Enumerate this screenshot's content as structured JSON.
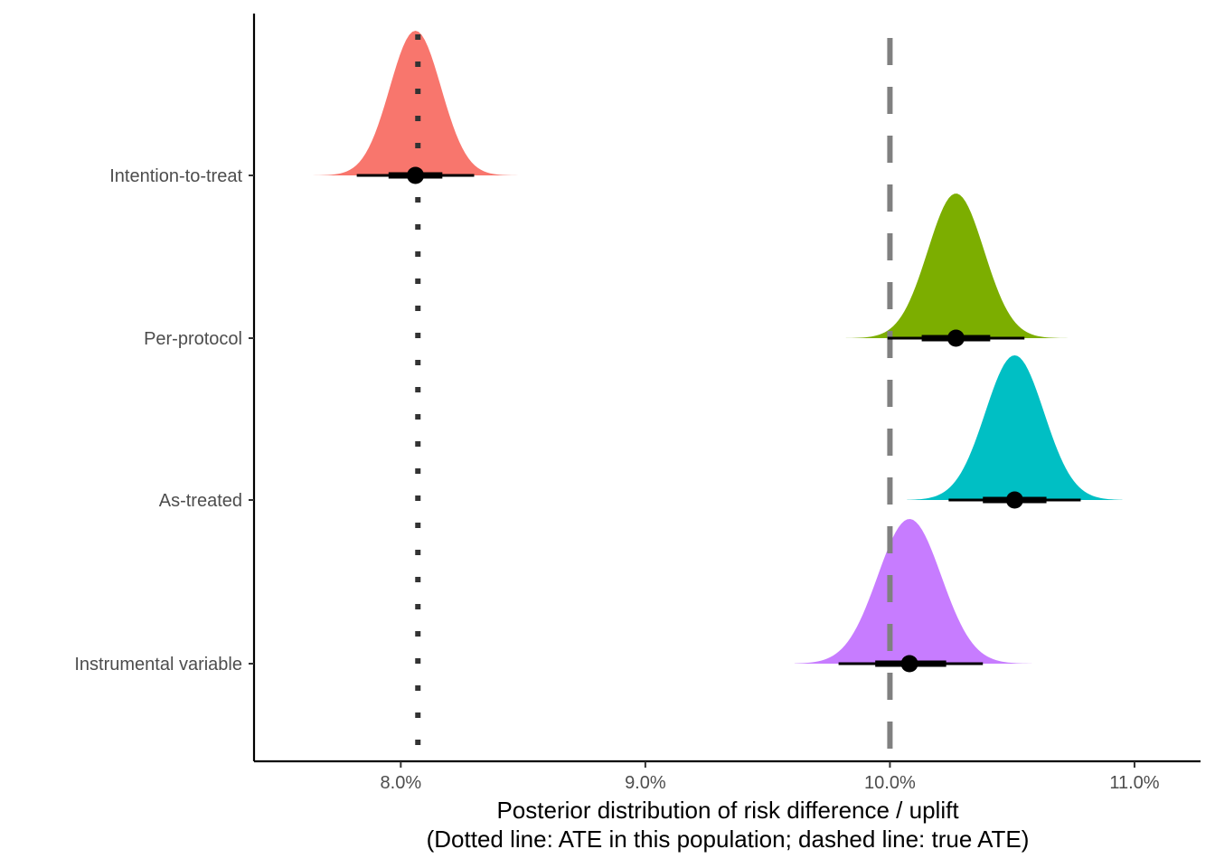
{
  "chart_data": {
    "type": "halfeye",
    "categories": [
      "Intention-to-treat",
      "Per-protocol",
      "As-treated",
      "Instrumental variable"
    ],
    "series": [
      {
        "name": "Intention-to-treat",
        "color": "#F8766D",
        "median": 8.06,
        "sd": 0.105,
        "interval_66": [
          7.95,
          8.17
        ],
        "interval_95": [
          7.82,
          8.3
        ],
        "range": [
          7.55,
          8.57
        ]
      },
      {
        "name": "Per-protocol",
        "color": "#7CAE00",
        "median": 10.27,
        "sd": 0.115,
        "interval_66": [
          10.13,
          10.41
        ],
        "interval_95": [
          9.99,
          10.55
        ],
        "range": [
          9.82,
          10.73
        ]
      },
      {
        "name": "As-treated",
        "color": "#00BFC4",
        "median": 10.51,
        "sd": 0.12,
        "interval_66": [
          10.38,
          10.64
        ],
        "interval_95": [
          10.24,
          10.78
        ],
        "range": [
          10.07,
          10.95
        ]
      },
      {
        "name": "Instrumental variable",
        "color": "#C77CFF",
        "median": 10.08,
        "sd": 0.13,
        "interval_66": [
          9.94,
          10.23
        ],
        "interval_95": [
          9.79,
          10.38
        ],
        "range": [
          9.61,
          10.58
        ]
      }
    ],
    "reference_lines": [
      {
        "value": 8.07,
        "style": "dotted",
        "color": "#333333"
      },
      {
        "value": 10.0,
        "style": "dashed",
        "color": "#808080"
      }
    ],
    "xlim": [
      7.4,
      11.27
    ],
    "xticks": [
      8.0,
      9.0,
      10.0,
      11.0
    ],
    "xtick_labels": [
      "8.0%",
      "9.0%",
      "10.0%",
      "11.0%"
    ],
    "xlabel_line1": "Posterior distribution of risk difference / uplift",
    "xlabel_line2": "(Dotted line: ATE in this population; dashed line: true ATE)",
    "ylabel": "",
    "grid": false,
    "legend": "none"
  }
}
